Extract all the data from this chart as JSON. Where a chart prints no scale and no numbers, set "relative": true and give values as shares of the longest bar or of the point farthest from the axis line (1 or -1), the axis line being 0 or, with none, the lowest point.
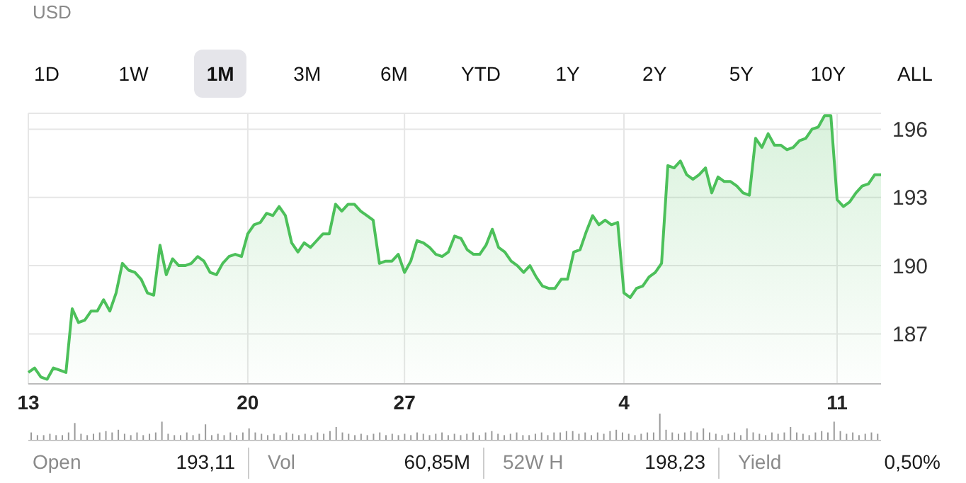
{
  "chart_data": [
    {
      "type": "area",
      "title": "USD",
      "annotations": [
        "1D",
        "1W",
        "1M",
        "3M",
        "6M",
        "YTD",
        "1Y",
        "2Y",
        "5Y",
        "10Y",
        "ALL"
      ],
      "categories": [
        "13",
        null,
        null,
        null,
        null,
        null,
        null,
        null,
        null,
        null,
        null,
        null,
        null,
        null,
        null,
        null,
        null,
        null,
        null,
        null,
        null,
        null,
        null,
        null,
        null,
        null,
        null,
        null,
        null,
        null,
        null,
        null,
        null,
        null,
        null,
        "20",
        null,
        null,
        null,
        null,
        null,
        null,
        null,
        null,
        null,
        null,
        null,
        null,
        null,
        null,
        null,
        null,
        null,
        null,
        null,
        null,
        null,
        null,
        null,
        null,
        "27",
        null,
        null,
        null,
        null,
        null,
        null,
        null,
        null,
        null,
        null,
        null,
        null,
        null,
        null,
        null,
        null,
        null,
        null,
        null,
        null,
        null,
        null,
        null,
        null,
        null,
        null,
        null,
        null,
        null,
        null,
        null,
        null,
        null,
        null,
        "4",
        null,
        null,
        null,
        null,
        null,
        null,
        null,
        null,
        null,
        null,
        null,
        null,
        null,
        null,
        null,
        null,
        null,
        null,
        null,
        null,
        null,
        null,
        null,
        null,
        null,
        null,
        null,
        null,
        null,
        null,
        null,
        null,
        null,
        "11",
        null,
        null,
        null,
        null,
        null,
        null,
        null
      ],
      "series": [
        {
          "color": "#4cc05a",
          "values": [
            185.3,
            185.5,
            185.1,
            185.0,
            185.5,
            185.4,
            185.3,
            188.1,
            187.5,
            187.6,
            188.0,
            188.0,
            188.5,
            188.0,
            188.8,
            190.1,
            189.8,
            189.7,
            189.4,
            188.8,
            188.7,
            190.9,
            189.6,
            190.3,
            190.0,
            190.0,
            190.1,
            190.4,
            190.2,
            189.7,
            189.6,
            190.1,
            190.4,
            190.5,
            190.4,
            191.4,
            191.8,
            191.9,
            192.3,
            192.2,
            192.6,
            192.2,
            191.0,
            190.6,
            191.0,
            190.8,
            191.1,
            191.4,
            191.4,
            192.7,
            192.4,
            192.7,
            192.7,
            192.4,
            192.2,
            192.0,
            190.1,
            190.2,
            190.2,
            190.5,
            189.7,
            190.2,
            191.1,
            191.0,
            190.8,
            190.5,
            190.4,
            190.6,
            191.3,
            191.2,
            190.7,
            190.5,
            190.5,
            190.9,
            191.6,
            190.8,
            190.6,
            190.2,
            190.0,
            189.7,
            190.0,
            189.5,
            189.1,
            189.0,
            189.0,
            189.4,
            189.4,
            190.6,
            190.7,
            191.5,
            192.2,
            191.8,
            192.0,
            191.8,
            191.9,
            188.8,
            188.6,
            189.0,
            189.1,
            189.5,
            189.7,
            190.1,
            194.4,
            194.3,
            194.6,
            194.0,
            193.8,
            194.0,
            194.3,
            193.2,
            193.9,
            193.7,
            193.7,
            193.5,
            193.2,
            193.1,
            195.6,
            195.2,
            195.8,
            195.3,
            195.3,
            195.1,
            195.2,
            195.5,
            195.6,
            196.0,
            196.1,
            196.6,
            196.6,
            192.9,
            192.6,
            192.8,
            193.2,
            193.5,
            193.6,
            194.0,
            194.0
          ]
        }
      ],
      "ylim": [
        184.8,
        196.7
      ],
      "yticks": [
        187,
        190,
        193,
        196
      ],
      "grid": true
    },
    {
      "type": "bar",
      "relative": true,
      "color": "#9a9a9a",
      "categories": [
        null,
        null,
        null,
        null,
        null,
        null,
        null,
        null,
        null,
        null,
        null,
        null,
        null,
        null,
        null,
        null,
        null,
        null,
        null,
        null,
        null,
        null,
        null,
        null,
        null,
        null,
        null,
        null,
        null,
        null,
        null,
        null,
        null,
        null,
        null,
        null,
        null,
        null,
        null,
        null,
        null,
        null,
        null,
        null,
        null,
        null,
        null,
        null,
        null,
        null,
        null,
        null,
        null,
        null,
        null,
        null,
        null,
        null,
        null,
        null,
        null,
        null,
        null,
        null,
        null,
        null,
        null,
        null,
        null,
        null,
        null,
        null,
        null,
        null,
        null,
        null,
        null,
        null,
        null,
        null,
        null,
        null,
        null,
        null,
        null,
        null,
        null,
        null,
        null,
        null,
        null,
        null,
        null,
        null,
        null,
        null,
        null,
        null,
        null,
        null,
        null,
        null,
        null,
        null,
        null,
        null,
        null,
        null,
        null,
        null,
        null,
        null,
        null,
        null,
        null,
        null,
        null,
        null,
        null,
        null,
        null,
        null,
        null,
        null,
        null,
        null,
        null,
        null,
        null,
        null,
        null,
        null,
        null,
        null,
        null,
        null,
        null
      ],
      "values": [
        0.3,
        0.2,
        0.2,
        0.25,
        0.2,
        0.2,
        0.3,
        0.65,
        0.25,
        0.2,
        0.25,
        0.3,
        0.35,
        0.3,
        0.4,
        0.25,
        0.2,
        0.3,
        0.2,
        0.25,
        0.3,
        0.7,
        0.25,
        0.2,
        0.2,
        0.3,
        0.2,
        0.25,
        0.6,
        0.2,
        0.25,
        0.2,
        0.3,
        0.2,
        0.3,
        0.45,
        0.3,
        0.25,
        0.2,
        0.25,
        0.2,
        0.3,
        0.25,
        0.2,
        0.25,
        0.2,
        0.3,
        0.25,
        0.35,
        0.5,
        0.3,
        0.25,
        0.2,
        0.25,
        0.2,
        0.25,
        0.3,
        0.2,
        0.25,
        0.2,
        0.25,
        0.2,
        0.3,
        0.25,
        0.2,
        0.25,
        0.3,
        0.2,
        0.25,
        0.2,
        0.25,
        0.3,
        0.2,
        0.3,
        0.35,
        0.25,
        0.2,
        0.25,
        0.3,
        0.2,
        0.2,
        0.25,
        0.3,
        0.2,
        0.3,
        0.3,
        0.35,
        0.35,
        0.25,
        0.3,
        0.2,
        0.3,
        0.25,
        0.35,
        0.4,
        0.3,
        0.25,
        0.2,
        0.25,
        0.3,
        0.3,
        1,
        0.4,
        0.3,
        0.25,
        0.3,
        0.35,
        0.3,
        0.45,
        0.3,
        0.25,
        0.2,
        0.25,
        0.3,
        0.2,
        0.45,
        0.3,
        0.25,
        0.2,
        0.3,
        0.25,
        0.3,
        0.5,
        0.3,
        0.25,
        0.2,
        0.3,
        0.35,
        0.3,
        0.7,
        0.35,
        0.25,
        0.3,
        0.2,
        0.25,
        0.3,
        0.25
      ]
    },
    {
      "type": "other",
      "annotations": [
        "Open",
        "193,11",
        "Vol",
        "60,85M",
        "52W H",
        "198,23",
        "Yield",
        "0,50%"
      ]
    }
  ]
}
